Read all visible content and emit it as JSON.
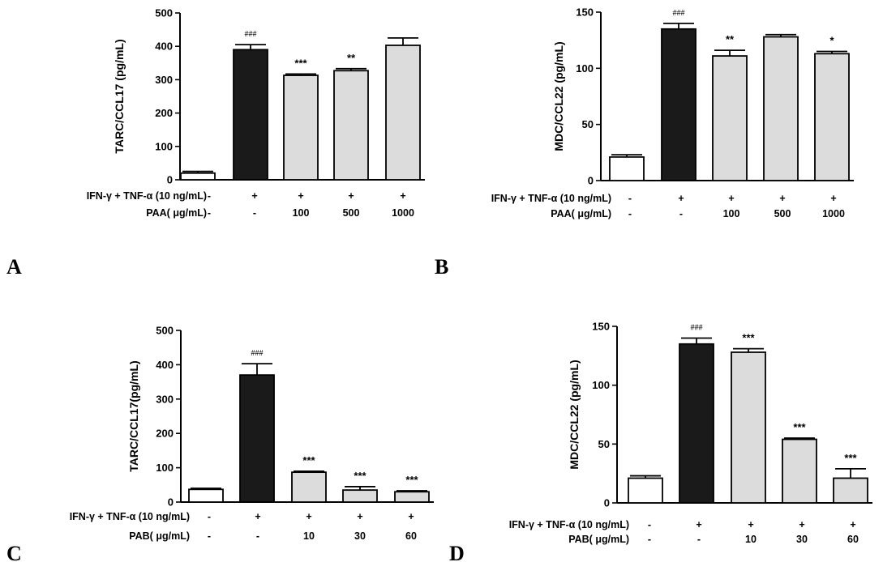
{
  "treatment_row_label": "IFN-γ + TNF-α  (10 ng/mL)",
  "colors": {
    "control": "#ffffff",
    "stimulated": "#1a1a1a",
    "treated": "#dcdcdc"
  },
  "chart_data": [
    {
      "type": "bar",
      "panel": "A",
      "ylabel": "TARC/CCL17 (pg/mL)",
      "ylim": [
        0,
        500
      ],
      "yticks": [
        "0",
        "100",
        "200",
        "300",
        "400",
        "500"
      ],
      "categories": [
        "control",
        "stimulated",
        "PAA 100",
        "PAA 500",
        "PAA 1000"
      ],
      "values": [
        20,
        390,
        313,
        327,
        403
      ],
      "errors": [
        5,
        15,
        4,
        6,
        22
      ],
      "bar_styles": [
        "control",
        "stimulated",
        "treated",
        "treated",
        "treated"
      ],
      "significance": [
        "",
        "###",
        "***",
        "**",
        ""
      ],
      "row1_signs": [
        "-",
        "+",
        "+",
        "+",
        "+"
      ],
      "row2_label": "PAA( μg/mL)",
      "row2_values": [
        "-",
        "-",
        "100",
        "500",
        "1000"
      ]
    },
    {
      "type": "bar",
      "panel": "B",
      "ylabel": "MDC/CCL22 (pg/mL)",
      "ylim": [
        0,
        150
      ],
      "yticks": [
        "0",
        "50",
        "100",
        "150"
      ],
      "categories": [
        "control",
        "stimulated",
        "PAA 100",
        "PAA 500",
        "PAA 1000"
      ],
      "values": [
        21,
        135,
        111,
        128,
        113
      ],
      "errors": [
        2,
        5,
        5,
        2,
        2
      ],
      "bar_styles": [
        "control",
        "stimulated",
        "treated",
        "treated",
        "treated"
      ],
      "significance": [
        "",
        "###",
        "**",
        "",
        "*"
      ],
      "row1_signs": [
        "-",
        "+",
        "+",
        "+",
        "+"
      ],
      "row2_label": "PAA( μg/mL)",
      "row2_values": [
        "-",
        "-",
        "100",
        "500",
        "1000"
      ]
    },
    {
      "type": "bar",
      "panel": "C",
      "ylabel": "TARC/CCL17(pg/mL)",
      "ylim": [
        0,
        500
      ],
      "yticks": [
        "0",
        "100",
        "200",
        "300",
        "400",
        "500"
      ],
      "categories": [
        "control",
        "stimulated",
        "PAB 10",
        "PAB 30",
        "PAB 60"
      ],
      "values": [
        37,
        370,
        87,
        35,
        30
      ],
      "errors": [
        3,
        33,
        3,
        10,
        3
      ],
      "bar_styles": [
        "control",
        "stimulated",
        "treated",
        "treated",
        "treated"
      ],
      "significance": [
        "",
        "###",
        "***",
        "***",
        "***"
      ],
      "row1_signs": [
        "-",
        "+",
        "+",
        "+",
        "+"
      ],
      "row2_label": "PAB( μg/mL)",
      "row2_values": [
        "-",
        "-",
        "10",
        "30",
        "60"
      ]
    },
    {
      "type": "bar",
      "panel": "D",
      "ylabel": "MDC/CCL22 (pg/mL)",
      "ylim": [
        0,
        150
      ],
      "yticks": [
        "0",
        "50",
        "100",
        "150"
      ],
      "categories": [
        "control",
        "stimulated",
        "PAB 10",
        "PAB 30",
        "PAB 60"
      ],
      "values": [
        21,
        135,
        128,
        54,
        21
      ],
      "errors": [
        2,
        5,
        3,
        1,
        8
      ],
      "bar_styles": [
        "control",
        "stimulated",
        "treated",
        "treated",
        "treated"
      ],
      "significance": [
        "",
        "###",
        "***",
        "***",
        "***"
      ],
      "row1_signs": [
        "-",
        "+",
        "+",
        "+",
        "+"
      ],
      "row2_label": "PAB( μg/mL)",
      "row2_values": [
        "-",
        "-",
        "10",
        "30",
        "60"
      ]
    }
  ]
}
